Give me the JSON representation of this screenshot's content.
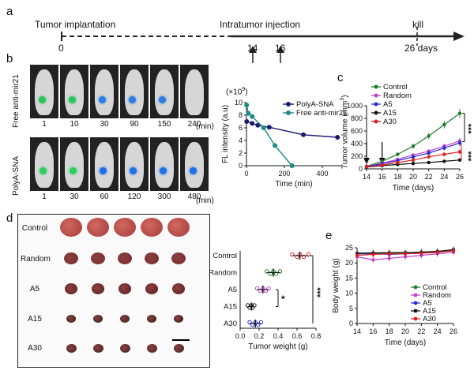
{
  "panels": {
    "a": "a",
    "b": "b",
    "c": "c",
    "d": "d",
    "e": "e"
  },
  "timeline": {
    "tumor": "Tumor  implantation",
    "intratumor": "Intratumor  injection",
    "kill": "kill",
    "t0": "0",
    "t14": "14",
    "t16": "16",
    "t26": "26 days"
  },
  "imaging": {
    "row1_label": "Free anti-mir21",
    "row2_label": "PolyA-SNA",
    "row1_times": [
      "1",
      "10",
      "30",
      "90",
      "150",
      "240"
    ],
    "row2_times": [
      "1",
      "30",
      "60",
      "120",
      "300",
      "480"
    ],
    "unit": "(min)"
  },
  "tumor_photos": {
    "rows": [
      "Control",
      "Random",
      "A5",
      "A15",
      "A30"
    ]
  },
  "colors": {
    "control": "#1d7a2b",
    "random": "#c040c8",
    "a5": "#2a2ad0",
    "a15": "#111111",
    "a30": "#e02020",
    "polya": "#1a1a6e",
    "free": "#1e8a86"
  },
  "chart_data": [
    {
      "type": "line",
      "title": "",
      "xlabel": "Time (min)",
      "ylabel": "FL intensity (a.u)",
      "yexp": "(×10",
      "yexp_sup": "9",
      "yexp_close": ")",
      "xlim": [
        0,
        500
      ],
      "ylim": [
        0,
        10
      ],
      "xticks": [
        "0",
        "200",
        "400"
      ],
      "yticks": [
        "0",
        "2",
        "4",
        "6",
        "8",
        "10"
      ],
      "legend_position": "top-right",
      "series": [
        {
          "name": "PolyA-SNA",
          "x": [
            1,
            30,
            60,
            120,
            300,
            480
          ],
          "y": [
            7.0,
            6.7,
            6.4,
            6.1,
            4.9,
            4.5
          ]
        },
        {
          "name": "Free anti-mir21",
          "x": [
            1,
            10,
            30,
            90,
            150,
            240
          ],
          "y": [
            9.6,
            8.3,
            7.8,
            6.0,
            3.2,
            0.0
          ]
        }
      ]
    },
    {
      "type": "line",
      "title": "",
      "xlabel": "Time (days)",
      "ylabel": "Tumor volume (mm",
      "ylabel_sup": "3",
      "ylabel_close": ")",
      "xlim": [
        14,
        26
      ],
      "ylim": [
        0,
        1000
      ],
      "xticks": [
        "14",
        "16",
        "18",
        "20",
        "22",
        "24",
        "26"
      ],
      "yticks": [
        "0",
        "200",
        "400",
        "600",
        "800",
        "1000"
      ],
      "legend_position": "top-left",
      "sig1": "***",
      "sig2": "***",
      "x": [
        14,
        16,
        18,
        20,
        22,
        24,
        26
      ],
      "series": [
        {
          "name": "Control",
          "y": [
            40,
            120,
            230,
            360,
            520,
            700,
            880
          ],
          "err": [
            10,
            20,
            30,
            40,
            50,
            60,
            70
          ]
        },
        {
          "name": "Random",
          "y": [
            38,
            90,
            150,
            220,
            280,
            360,
            440
          ],
          "err": [
            8,
            15,
            20,
            25,
            30,
            40,
            50
          ]
        },
        {
          "name": "A5",
          "y": [
            36,
            80,
            130,
            190,
            250,
            330,
            410
          ],
          "err": [
            8,
            15,
            20,
            25,
            30,
            40,
            50
          ]
        },
        {
          "name": "A15",
          "y": [
            30,
            50,
            70,
            85,
            100,
            120,
            140
          ],
          "err": [
            5,
            8,
            10,
            10,
            12,
            15,
            15
          ]
        },
        {
          "name": "A30",
          "y": [
            32,
            60,
            100,
            140,
            190,
            230,
            270
          ],
          "err": [
            6,
            10,
            15,
            20,
            25,
            30,
            35
          ]
        }
      ]
    },
    {
      "type": "scatter",
      "title": "",
      "xlabel": "Tumor weight (g)",
      "ylabel": "",
      "xlim": [
        0,
        0.8
      ],
      "xticks": [
        "0.0",
        "0.2",
        "0.4",
        "0.6",
        "0.8"
      ],
      "categories": [
        "Control",
        "Random",
        "A5",
        "A15",
        "A30"
      ],
      "sig_big": "***",
      "sig_small": "*",
      "series": [
        {
          "name": "Control",
          "values": [
            0.55,
            0.6,
            0.63,
            0.67,
            0.72
          ],
          "mean": 0.63
        },
        {
          "name": "Random",
          "values": [
            0.28,
            0.32,
            0.35,
            0.38,
            0.42
          ],
          "mean": 0.35
        },
        {
          "name": "A5",
          "values": [
            0.18,
            0.21,
            0.24,
            0.27,
            0.3
          ],
          "mean": 0.24
        },
        {
          "name": "A15",
          "values": [
            0.08,
            0.1,
            0.12,
            0.13,
            0.15
          ],
          "mean": 0.12
        },
        {
          "name": "A30",
          "values": [
            0.1,
            0.13,
            0.16,
            0.19,
            0.22
          ],
          "mean": 0.16
        }
      ]
    },
    {
      "type": "line",
      "title": "",
      "xlabel": "Time (days)",
      "ylabel": "Body weight (g)",
      "xlim": [
        14,
        26
      ],
      "ylim": [
        0,
        25
      ],
      "xticks": [
        "14",
        "16",
        "18",
        "20",
        "22",
        "24",
        "26"
      ],
      "yticks": [
        "0",
        "5",
        "10",
        "15",
        "20",
        "25"
      ],
      "legend_position": "bottom-right",
      "x": [
        14,
        16,
        18,
        20,
        22,
        24,
        26
      ],
      "series": [
        {
          "name": "Control",
          "y": [
            23.0,
            23.2,
            23.0,
            23.3,
            23.6,
            23.8,
            24.2
          ]
        },
        {
          "name": "Random",
          "y": [
            22.0,
            21.0,
            21.5,
            22.0,
            22.5,
            23.0,
            23.5
          ]
        },
        {
          "name": "A5",
          "y": [
            23.0,
            23.0,
            22.8,
            23.0,
            23.2,
            23.5,
            24.0
          ]
        },
        {
          "name": "A15",
          "y": [
            23.2,
            23.3,
            23.4,
            23.4,
            23.5,
            23.8,
            24.4
          ]
        },
        {
          "name": "A30",
          "y": [
            22.5,
            22.8,
            23.0,
            23.0,
            23.2,
            23.5,
            24.0
          ]
        }
      ]
    }
  ]
}
